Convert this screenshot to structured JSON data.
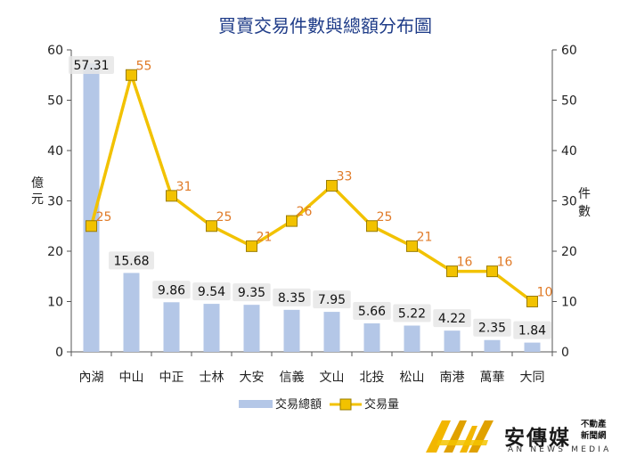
{
  "chart_data": {
    "type": "bar+line",
    "title": "買賣交易件數與總額分布圖",
    "categories": [
      "內湖",
      "中山",
      "中正",
      "士林",
      "大安",
      "信義",
      "文山",
      "北投",
      "松山",
      "南港",
      "萬華",
      "大同"
    ],
    "series": [
      {
        "name": "交易總額",
        "type": "bar",
        "axis": "left",
        "values": [
          57.31,
          15.68,
          9.86,
          9.54,
          9.35,
          8.35,
          7.95,
          5.66,
          5.22,
          4.22,
          2.35,
          1.84
        ],
        "labels": [
          "57.31",
          "15.68",
          "9.86",
          "9.54",
          "9.35",
          "8.35",
          "7.95",
          "5.66",
          "5.22",
          "4.22",
          "2.35",
          "1.84"
        ]
      },
      {
        "name": "交易量",
        "type": "line",
        "axis": "right",
        "values": [
          25,
          55,
          31,
          25,
          21,
          26,
          33,
          25,
          21,
          16,
          16,
          10
        ],
        "labels": [
          "25",
          "55",
          "31",
          "25",
          "21",
          "26",
          "33",
          "25",
          "21",
          "16",
          "16",
          "10"
        ]
      }
    ],
    "ylabel_left": "億元",
    "ylabel_right": "件數",
    "ylim": [
      0,
      60
    ],
    "yticks": [
      "0",
      "10",
      "20",
      "30",
      "40",
      "50",
      "60"
    ],
    "legend_position": "bottom",
    "grid": false,
    "colors": {
      "bar": "#b4c7e7",
      "line": "#f2c200",
      "line_label": "#e07b28",
      "title": "#1f3c88",
      "text": "#222222"
    }
  },
  "logo": {
    "name": "安傳媒",
    "side": [
      "不動產",
      "新聞網"
    ],
    "sub": "AN NEWS MEDIA"
  }
}
